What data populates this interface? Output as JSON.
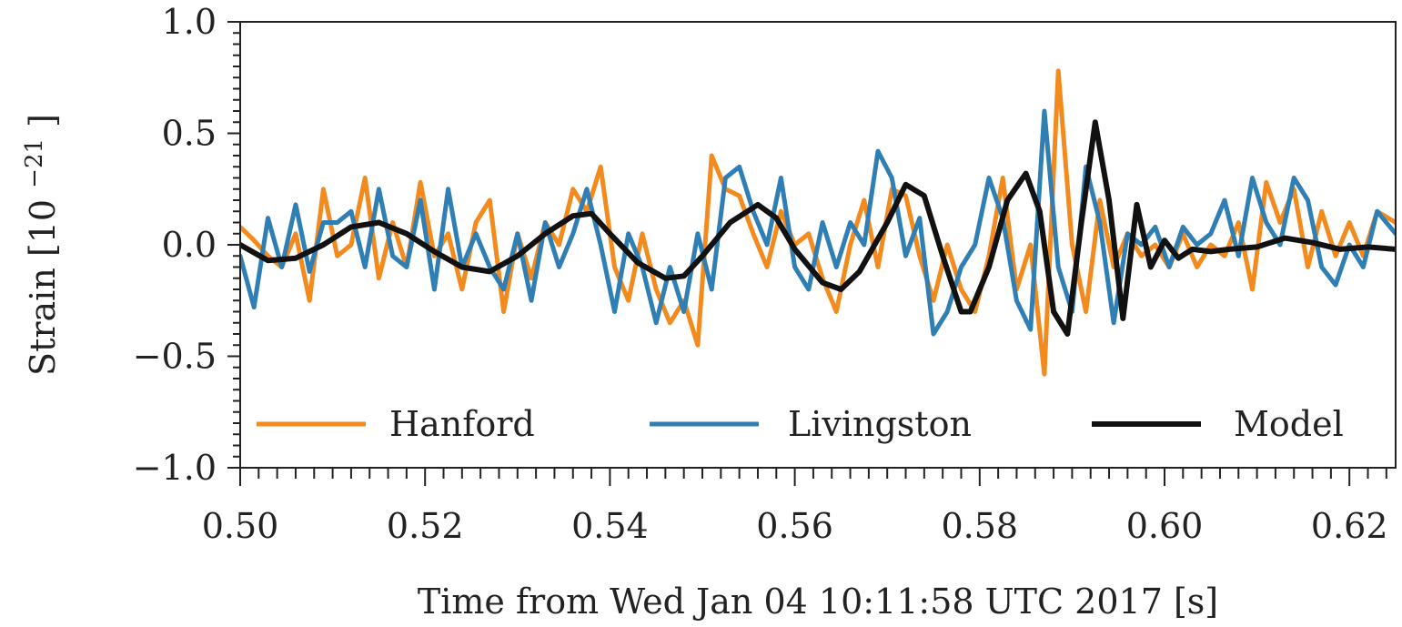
{
  "chart_data": {
    "type": "line",
    "xlabel": "Time from Wed Jan 04 10:11:58 UTC 2017 [s]",
    "ylabel_main": "Strain",
    "ylabel_unit": "[10",
    "ylabel_exp": "−21",
    "ylabel_close": "]",
    "xlim": [
      0.5,
      0.625
    ],
    "ylim": [
      -1.0,
      1.0
    ],
    "xticks": [
      0.5,
      0.52,
      0.54,
      0.56,
      0.58,
      0.6,
      0.62
    ],
    "xtick_labels": [
      "0.50",
      "0.52",
      "0.54",
      "0.56",
      "0.58",
      "0.60",
      "0.62"
    ],
    "yticks": [
      1.0,
      0.5,
      0.0,
      -0.5,
      -1.0
    ],
    "ytick_labels": [
      "1.0",
      "0.5",
      "0.0",
      "−0.5",
      "−1.0"
    ],
    "grid": false,
    "legend_position": "bottom",
    "series": [
      {
        "name": "Hanford",
        "color": "#f28a1e",
        "x": [
          0.5,
          0.5015,
          0.503,
          0.5045,
          0.506,
          0.5075,
          0.509,
          0.5105,
          0.512,
          0.5135,
          0.515,
          0.5165,
          0.518,
          0.5195,
          0.521,
          0.5225,
          0.524,
          0.5255,
          0.527,
          0.5285,
          0.53,
          0.5315,
          0.533,
          0.5345,
          0.536,
          0.5375,
          0.539,
          0.5405,
          0.542,
          0.5435,
          0.545,
          0.5465,
          0.548,
          0.5495,
          0.551,
          0.5525,
          0.554,
          0.5555,
          0.557,
          0.5585,
          0.56,
          0.5615,
          0.563,
          0.5645,
          0.566,
          0.5675,
          0.569,
          0.5705,
          0.572,
          0.5735,
          0.575,
          0.5765,
          0.578,
          0.5795,
          0.581,
          0.5825,
          0.584,
          0.5855,
          0.587,
          0.5885,
          0.59,
          0.5915,
          0.593,
          0.5945,
          0.596,
          0.5975,
          0.599,
          0.6005,
          0.602,
          0.6035,
          0.605,
          0.6065,
          0.608,
          0.6095,
          0.611,
          0.6125,
          0.614,
          0.6155,
          0.617,
          0.6185,
          0.62,
          0.6215,
          0.623,
          0.625
        ],
        "y": [
          0.08,
          0.02,
          -0.05,
          -0.1,
          0.05,
          -0.25,
          0.25,
          -0.05,
          0.0,
          0.3,
          -0.15,
          0.1,
          -0.1,
          0.28,
          -0.05,
          0.05,
          -0.2,
          0.1,
          0.2,
          -0.3,
          0.05,
          -0.15,
          0.1,
          0.0,
          0.25,
          0.15,
          0.35,
          -0.1,
          -0.25,
          0.05,
          -0.2,
          -0.35,
          -0.25,
          -0.45,
          0.4,
          0.25,
          0.22,
          0.05,
          -0.1,
          0.15,
          0.0,
          0.05,
          -0.15,
          -0.3,
          0.0,
          0.2,
          -0.1,
          0.25,
          0.22,
          -0.05,
          -0.25,
          0.0,
          -0.2,
          -0.3,
          -0.05,
          0.3,
          -0.2,
          0.0,
          -0.58,
          0.78,
          0.0,
          -0.3,
          0.2,
          -0.1,
          0.05,
          -0.05,
          0.0,
          -0.1,
          0.05,
          -0.1,
          0.0,
          -0.05,
          0.1,
          -0.2,
          0.28,
          0.1,
          0.25,
          -0.1,
          0.15,
          -0.05,
          0.1,
          -0.05,
          0.15,
          0.1
        ]
      },
      {
        "name": "Livingston",
        "color": "#2f7fb5",
        "x": [
          0.5,
          0.5015,
          0.503,
          0.5045,
          0.506,
          0.5075,
          0.509,
          0.5105,
          0.512,
          0.5135,
          0.515,
          0.5165,
          0.518,
          0.5195,
          0.521,
          0.5225,
          0.524,
          0.5255,
          0.527,
          0.5285,
          0.53,
          0.5315,
          0.533,
          0.5345,
          0.536,
          0.5375,
          0.539,
          0.5405,
          0.542,
          0.5435,
          0.545,
          0.5465,
          0.548,
          0.5495,
          0.551,
          0.5525,
          0.554,
          0.5555,
          0.557,
          0.5585,
          0.56,
          0.5615,
          0.563,
          0.5645,
          0.566,
          0.5675,
          0.569,
          0.5705,
          0.572,
          0.5735,
          0.575,
          0.5765,
          0.578,
          0.5795,
          0.581,
          0.5825,
          0.584,
          0.5855,
          0.587,
          0.5885,
          0.59,
          0.5915,
          0.593,
          0.5945,
          0.596,
          0.5975,
          0.599,
          0.6005,
          0.602,
          0.6035,
          0.605,
          0.6065,
          0.608,
          0.6095,
          0.611,
          0.6125,
          0.614,
          0.6155,
          0.617,
          0.6185,
          0.62,
          0.6215,
          0.623,
          0.625
        ],
        "y": [
          -0.05,
          -0.28,
          0.12,
          -0.1,
          0.18,
          -0.12,
          0.1,
          0.1,
          0.15,
          -0.1,
          0.25,
          -0.05,
          -0.1,
          0.2,
          -0.2,
          0.25,
          -0.1,
          0.05,
          -0.1,
          -0.2,
          0.05,
          -0.25,
          0.1,
          -0.1,
          0.05,
          0.25,
          0.0,
          -0.3,
          0.05,
          -0.1,
          -0.35,
          -0.1,
          -0.3,
          0.05,
          -0.2,
          0.3,
          0.35,
          0.15,
          0.0,
          0.3,
          -0.1,
          -0.2,
          0.1,
          -0.1,
          0.1,
          0.0,
          0.42,
          0.3,
          -0.05,
          0.12,
          -0.4,
          -0.3,
          -0.1,
          0.0,
          0.3,
          0.12,
          -0.25,
          -0.38,
          0.6,
          -0.1,
          -0.3,
          0.35,
          0.1,
          -0.35,
          0.05,
          0.0,
          0.08,
          -0.1,
          0.08,
          0.0,
          0.05,
          0.2,
          -0.05,
          0.3,
          0.1,
          0.0,
          0.3,
          0.2,
          -0.1,
          -0.18,
          0.0,
          -0.1,
          0.15,
          0.05
        ]
      },
      {
        "name": "Model",
        "color": "#111111",
        "x": [
          0.5,
          0.503,
          0.506,
          0.509,
          0.512,
          0.515,
          0.518,
          0.521,
          0.524,
          0.527,
          0.53,
          0.533,
          0.536,
          0.538,
          0.54,
          0.543,
          0.546,
          0.548,
          0.55,
          0.553,
          0.556,
          0.558,
          0.56,
          0.563,
          0.565,
          0.567,
          0.57,
          0.572,
          0.574,
          0.576,
          0.578,
          0.579,
          0.581,
          0.583,
          0.585,
          0.5865,
          0.588,
          0.5895,
          0.591,
          0.5925,
          0.594,
          0.5955,
          0.597,
          0.5985,
          0.6,
          0.6015,
          0.603,
          0.605,
          0.607,
          0.61,
          0.613,
          0.616,
          0.619,
          0.622,
          0.625
        ],
        "y": [
          0.0,
          -0.07,
          -0.06,
          0.0,
          0.08,
          0.1,
          0.05,
          -0.03,
          -0.1,
          -0.12,
          -0.05,
          0.05,
          0.13,
          0.14,
          0.05,
          -0.08,
          -0.15,
          -0.14,
          -0.05,
          0.1,
          0.18,
          0.12,
          -0.02,
          -0.17,
          -0.2,
          -0.12,
          0.1,
          0.27,
          0.22,
          -0.05,
          -0.3,
          -0.3,
          -0.1,
          0.2,
          0.32,
          0.15,
          -0.3,
          -0.4,
          0.1,
          0.55,
          0.2,
          -0.33,
          0.18,
          -0.1,
          0.02,
          -0.06,
          -0.02,
          -0.03,
          -0.02,
          -0.01,
          0.03,
          0.01,
          -0.02,
          -0.01,
          -0.02
        ]
      }
    ]
  }
}
